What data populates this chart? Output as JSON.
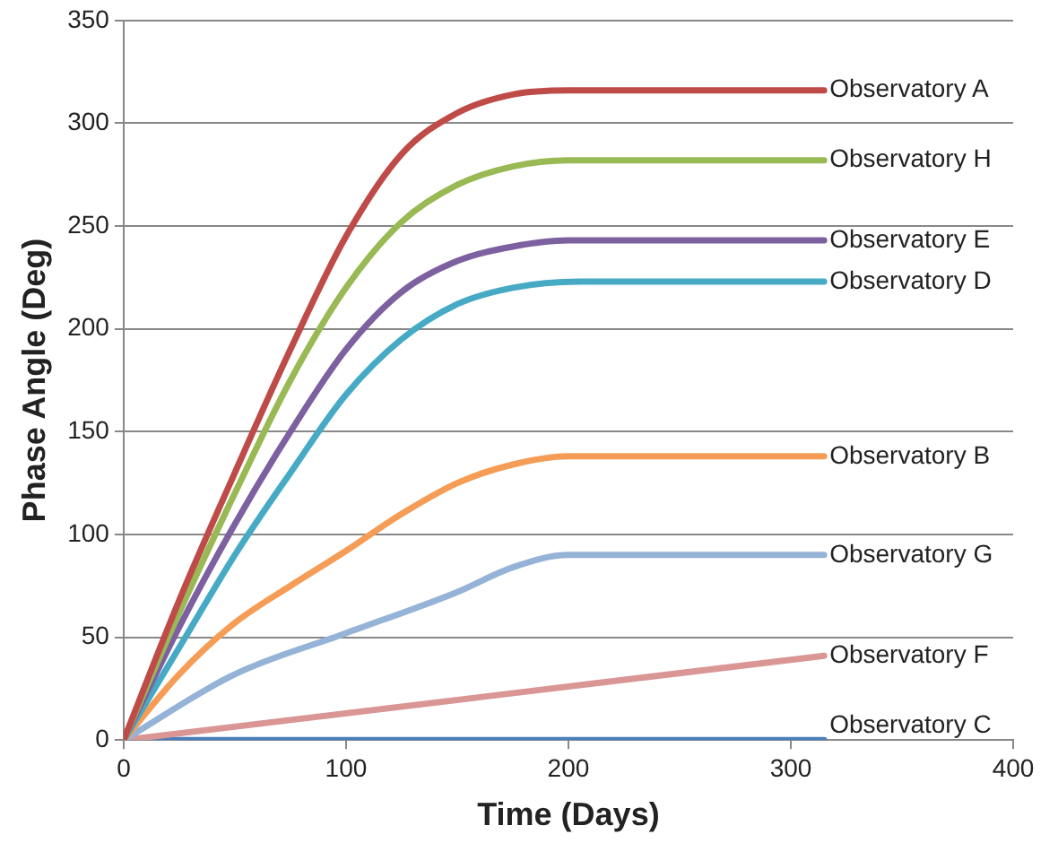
{
  "chart_data": {
    "type": "line",
    "xlabel": "Time (Days)",
    "ylabel": "Phase Angle (Deg)",
    "xlim": [
      0,
      400
    ],
    "xticks": [
      0,
      100,
      200,
      300,
      400
    ],
    "ylim": [
      0,
      350
    ],
    "yticks": [
      0,
      50,
      100,
      150,
      200,
      250,
      300,
      350
    ],
    "grid": "y",
    "legend": false,
    "marker": "none",
    "line_style": "solid",
    "series": [
      {
        "name": "Observatory A",
        "color": "#be4b48",
        "x": [
          0,
          25,
          50,
          75,
          100,
          125,
          150,
          175,
          200,
          315
        ],
        "values": [
          0,
          68,
          130,
          190,
          245,
          285,
          305,
          314,
          316,
          316
        ]
      },
      {
        "name": "Observatory H",
        "color": "#98b954",
        "x": [
          0,
          25,
          50,
          75,
          100,
          125,
          150,
          175,
          200,
          315
        ],
        "values": [
          0,
          62,
          120,
          175,
          220,
          252,
          270,
          279,
          282,
          282
        ]
      },
      {
        "name": "Observatory E",
        "color": "#7d60a0",
        "x": [
          0,
          25,
          50,
          75,
          100,
          125,
          150,
          175,
          200,
          315
        ],
        "values": [
          0,
          55,
          105,
          150,
          190,
          218,
          233,
          240,
          243,
          243
        ]
      },
      {
        "name": "Observatory D",
        "color": "#46aac5",
        "x": [
          0,
          25,
          50,
          75,
          100,
          125,
          150,
          175,
          205,
          315
        ],
        "values": [
          0,
          45,
          90,
          130,
          168,
          195,
          212,
          220,
          223,
          223
        ]
      },
      {
        "name": "Observatory B",
        "color": "#f59d56",
        "x": [
          0,
          25,
          50,
          75,
          100,
          125,
          150,
          175,
          200,
          315
        ],
        "values": [
          0,
          32,
          57,
          75,
          92,
          110,
          125,
          134,
          138,
          138
        ]
      },
      {
        "name": "Observatory G",
        "color": "#95b3d7",
        "x": [
          0,
          50,
          100,
          150,
          175,
          200,
          315
        ],
        "values": [
          0,
          32,
          52,
          72,
          84,
          90,
          90
        ]
      },
      {
        "name": "Observatory F",
        "color": "#d99694",
        "x": [
          0,
          315
        ],
        "values": [
          0,
          41
        ]
      },
      {
        "name": "Observatory C",
        "color": "#4a7ebb",
        "x": [
          0,
          315
        ],
        "values": [
          0,
          0
        ]
      }
    ]
  }
}
